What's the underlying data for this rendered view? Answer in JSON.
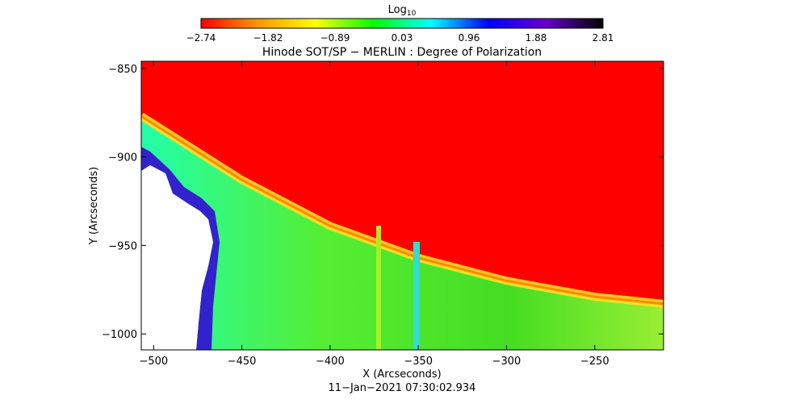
{
  "chart_data": {
    "type": "heatmap",
    "title": "Hinode SOT/SP − MERLIN : Degree of Polarization",
    "xlabel": "X (Arcseconds)",
    "ylabel": "Y (Arcseconds)",
    "timestamp": "11−Jan−2021 07:30:02.934",
    "xlim": [
      -507,
      -211
    ],
    "ylim": [
      -1009,
      -846
    ],
    "xticks": [
      -500,
      -450,
      -400,
      -350,
      -300,
      -250
    ],
    "yticks": [
      -850,
      -900,
      -950,
      -1000
    ],
    "xtick_labels": [
      "−500",
      "−450",
      "−400",
      "−350",
      "−300",
      "−250"
    ],
    "ytick_labels": [
      "−850",
      "−900",
      "−950",
      "−1000"
    ],
    "colorbar": {
      "label_base": "Log",
      "label_sub": "10",
      "min": -2.74,
      "max": 2.81,
      "tick_labels": [
        "−2.74",
        "−1.82",
        "−0.89",
        "0.03",
        "0.96",
        "1.88",
        "2.81"
      ],
      "stops": [
        "#ff0000",
        "#ff9900",
        "#ffff00",
        "#00ff00",
        "#00ffff",
        "#0000ff",
        "#6600cc",
        "#000000"
      ]
    },
    "limb_curve": [
      [
        -507,
        -877
      ],
      [
        -450,
        -913
      ],
      [
        -400,
        -939
      ],
      [
        -350,
        -957
      ],
      [
        -300,
        -970
      ],
      [
        -250,
        -979
      ],
      [
        -211,
        -983
      ]
    ],
    "colors": {
      "sky": "#ff0000",
      "limb": "#ffdd00",
      "disk": "#33ee22",
      "edge": "#3322cc",
      "nodata": "#ffffff"
    }
  }
}
